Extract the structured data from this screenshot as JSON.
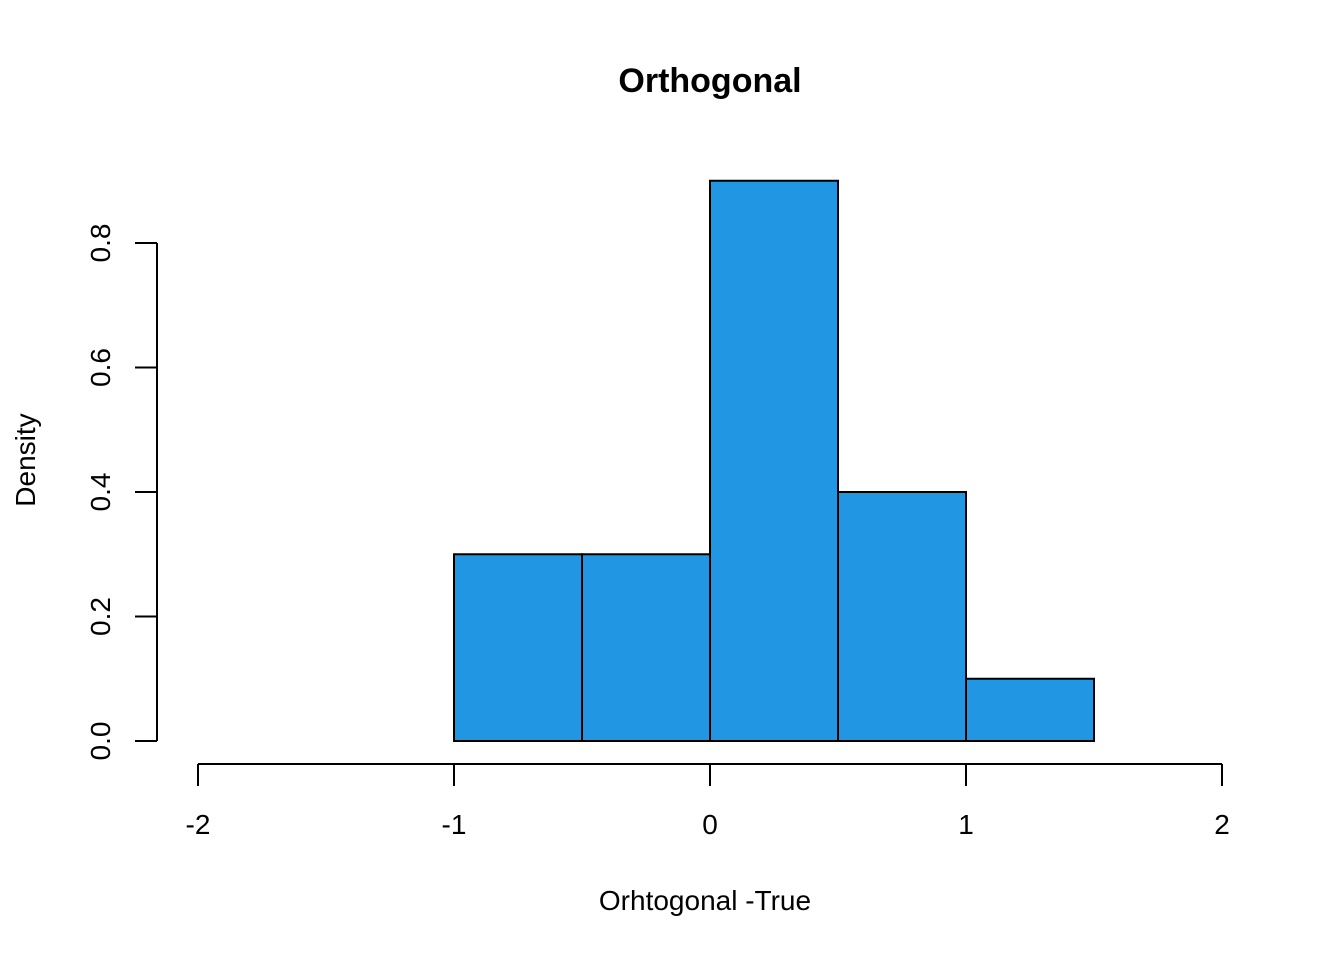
{
  "chart_data": {
    "type": "bar",
    "subtype": "histogram",
    "title": "Orthogonal",
    "xlabel": "Orhtogonal -True",
    "ylabel": "Density",
    "xlim": [
      -2,
      2
    ],
    "ylim": [
      0,
      0.9
    ],
    "bin_edges": [
      -1,
      -0.5,
      0,
      0.5,
      1,
      1.5
    ],
    "values": [
      0.3,
      0.3,
      0.9,
      0.4,
      0.1
    ],
    "x_ticks": [
      "-2",
      "-1",
      "0",
      "1",
      "2"
    ],
    "x_tick_values": [
      -2,
      -1,
      0,
      1,
      2
    ],
    "y_ticks": [
      "0.0",
      "0.2",
      "0.4",
      "0.6",
      "0.8"
    ],
    "y_tick_values": [
      0,
      0.2,
      0.4,
      0.6,
      0.8
    ],
    "bar_color": "#2196E3",
    "grid": false,
    "legend": "none"
  }
}
